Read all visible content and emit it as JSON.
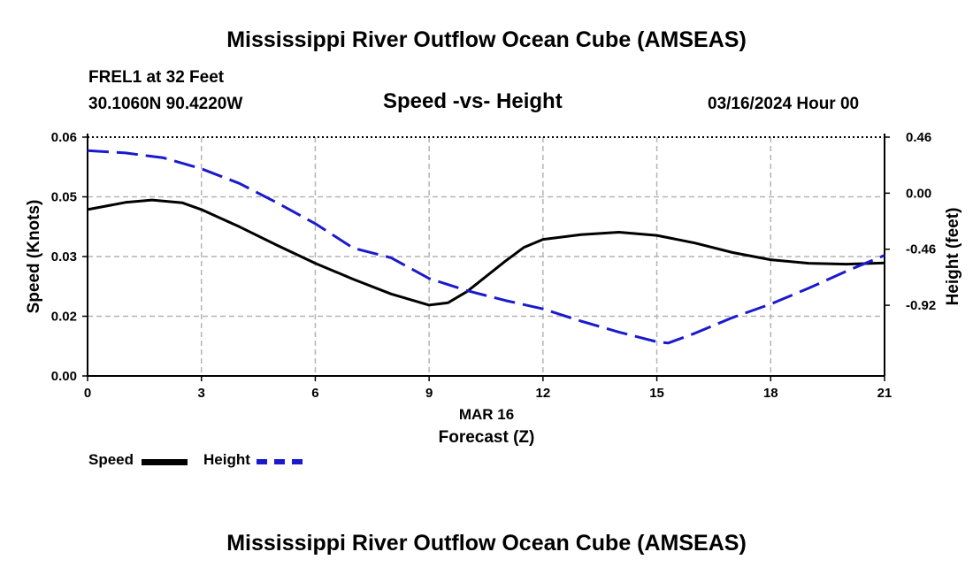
{
  "header": {
    "title": "Mississippi River Outflow Ocean Cube (AMSEAS)",
    "station": "FREL1 at 32 Feet",
    "coords": "30.1060N  90.4220W",
    "subtitle": "Speed -vs- Height",
    "datetime": "03/16/2024 Hour 00"
  },
  "footer": {
    "title": "Mississippi River Outflow Ocean Cube (AMSEAS)"
  },
  "legend": {
    "speed_label": "Speed",
    "height_label": "Height"
  },
  "chart_data": {
    "type": "line",
    "title": "Speed -vs- Height",
    "xlabel": "Forecast (Z)",
    "xsublabel": "MAR 16",
    "ylabel": "Speed (Knots)",
    "y2label": "Height (feet)",
    "xlim": [
      0,
      21
    ],
    "ylim": [
      0,
      0.06
    ],
    "y2lim": [
      -1.5,
      0.46
    ],
    "x_ticks": [
      0,
      3,
      6,
      9,
      12,
      15,
      18,
      21
    ],
    "y_ticks": [
      0,
      0.015,
      0.03,
      0.045,
      0.06
    ],
    "y_tick_labels": [
      "0.00",
      "0.02",
      "0.03",
      "0.05",
      "0.06"
    ],
    "y2_ticks": [
      0.46,
      0.0,
      -0.46,
      -0.92
    ],
    "y2_tick_labels": [
      "0.46",
      "0.00",
      "-0.46",
      "-0.92"
    ],
    "grid": true,
    "colors": {
      "speed": "#000000",
      "height": "#1a1acc",
      "grid": "#b4b4b4"
    },
    "series": [
      {
        "name": "Speed",
        "axis": "left",
        "style": "solid",
        "x": [
          0,
          1,
          1.7,
          2.5,
          3,
          4,
          5,
          6,
          7,
          8,
          9,
          9.5,
          10,
          11,
          11.5,
          12,
          13,
          14,
          15,
          16,
          17,
          18,
          19,
          20,
          21
        ],
        "values": [
          0.0418,
          0.0436,
          0.0442,
          0.0435,
          0.0418,
          0.0375,
          0.0328,
          0.0283,
          0.0243,
          0.0206,
          0.0178,
          0.0184,
          0.0212,
          0.0288,
          0.0323,
          0.0343,
          0.0355,
          0.0361,
          0.0353,
          0.0334,
          0.031,
          0.0292,
          0.0283,
          0.0281,
          0.0284
        ]
      },
      {
        "name": "Height",
        "axis": "right",
        "style": "dashed",
        "x": [
          0,
          1,
          2,
          3,
          4,
          5,
          6,
          7,
          8,
          9,
          10,
          11,
          12,
          13,
          14,
          15,
          15.3,
          16,
          17,
          18,
          19,
          20,
          21
        ],
        "values": [
          0.35,
          0.33,
          0.29,
          0.2,
          0.08,
          -0.08,
          -0.25,
          -0.45,
          -0.53,
          -0.7,
          -0.8,
          -0.88,
          -0.95,
          -1.05,
          -1.14,
          -1.22,
          -1.23,
          -1.15,
          -1.02,
          -0.91,
          -0.78,
          -0.64,
          -0.51
        ]
      }
    ]
  }
}
